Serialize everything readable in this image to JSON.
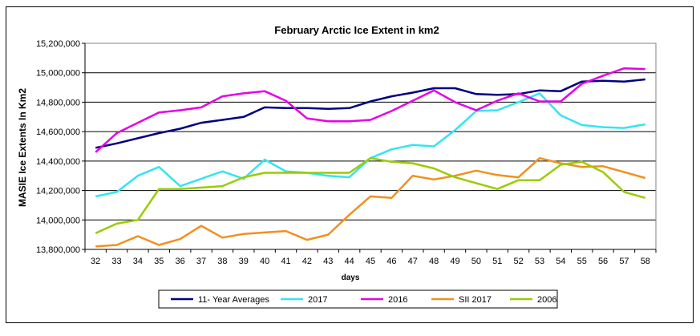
{
  "chart_data": {
    "type": "line",
    "title": "February Arctic Ice Extent in km2",
    "xlabel": "days",
    "ylabel": "MASIE Ice Extents In Km2",
    "ylim": [
      13800000,
      15200000
    ],
    "yticks": [
      13800000,
      14000000,
      14200000,
      14400000,
      14600000,
      14800000,
      15000000,
      15200000
    ],
    "ytick_labels": [
      "13,800,000",
      "14,000,000",
      "14,200,000",
      "14,400,000",
      "14,600,000",
      "14,800,000",
      "15,000,000",
      "15,200,000"
    ],
    "x": [
      32,
      33,
      34,
      35,
      36,
      37,
      38,
      39,
      40,
      41,
      42,
      43,
      44,
      45,
      46,
      47,
      48,
      49,
      50,
      51,
      52,
      53,
      54,
      55,
      56,
      57,
      58
    ],
    "legend_position": "bottom",
    "series": [
      {
        "name": "11- Year Averages",
        "color": "#000080",
        "values": [
          14490000,
          14520000,
          14555000,
          14590000,
          14620000,
          14660000,
          14680000,
          14700000,
          14765000,
          14760000,
          14760000,
          14755000,
          14760000,
          14805000,
          14840000,
          14865000,
          14895000,
          14895000,
          14855000,
          14850000,
          14855000,
          14880000,
          14875000,
          14940000,
          14945000,
          14940000,
          14955000
        ]
      },
      {
        "name": "2017",
        "color": "#33E5F0",
        "values": [
          14160000,
          14190000,
          14300000,
          14360000,
          14230000,
          14280000,
          14330000,
          14280000,
          14410000,
          14330000,
          14320000,
          14300000,
          14290000,
          14420000,
          14480000,
          14510000,
          14500000,
          14610000,
          14740000,
          14745000,
          14800000,
          14860000,
          14710000,
          14645000,
          14630000,
          14625000,
          14650000
        ]
      },
      {
        "name": "2016",
        "color": "#E600E6",
        "values": [
          14460000,
          14590000,
          14660000,
          14730000,
          14745000,
          14765000,
          14840000,
          14860000,
          14875000,
          14810000,
          14690000,
          14670000,
          14670000,
          14680000,
          14740000,
          14810000,
          14880000,
          14800000,
          14745000,
          14810000,
          14860000,
          14805000,
          14805000,
          14925000,
          14980000,
          15030000,
          15025000
        ]
      },
      {
        "name": "SII 2017",
        "color": "#F0901E",
        "values": [
          13820000,
          13830000,
          13890000,
          13830000,
          13870000,
          13960000,
          13880000,
          13905000,
          13915000,
          13925000,
          13865000,
          13900000,
          14035000,
          14160000,
          14150000,
          14300000,
          14275000,
          14300000,
          14335000,
          14305000,
          14290000,
          14420000,
          14385000,
          14360000,
          14365000,
          14325000,
          14285000
        ]
      },
      {
        "name": "2006",
        "color": "#99CC00",
        "values": [
          13910000,
          13975000,
          14000000,
          14210000,
          14210000,
          14220000,
          14230000,
          14290000,
          14320000,
          14320000,
          14320000,
          14320000,
          14320000,
          14420000,
          14395000,
          14385000,
          14350000,
          14290000,
          14250000,
          14210000,
          14270000,
          14270000,
          14375000,
          14395000,
          14325000,
          14190000,
          14150000
        ]
      }
    ]
  }
}
